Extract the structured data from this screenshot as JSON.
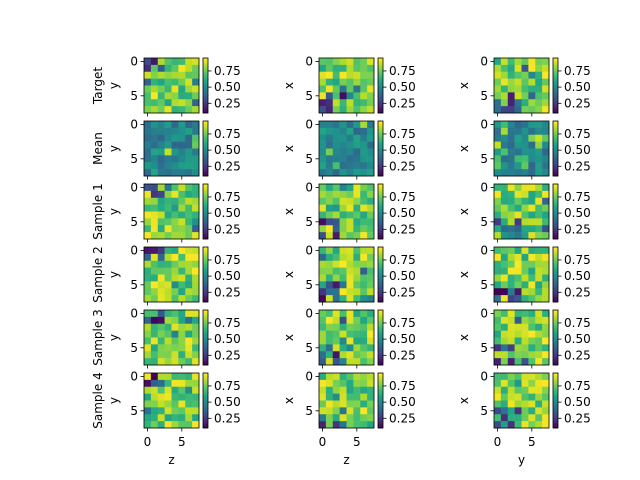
{
  "chart_data": {
    "type": "heatmap",
    "title": "",
    "rows": [
      "Target",
      "Mean",
      "Sample 1",
      "Sample 2",
      "Sample 3",
      "Sample 4"
    ],
    "column_xlabels": [
      "z",
      "z",
      "y"
    ],
    "column_ylabels": [
      "y",
      "x",
      "x"
    ],
    "axis_ticks": [
      0,
      5
    ],
    "grid_size": 8,
    "colormap": "viridis",
    "colorbar_ticks": [
      0.25,
      0.5,
      0.75
    ],
    "colorbar_tick_labels": [
      "0.25",
      "0.50",
      "0.75"
    ],
    "color_range": [
      0.1,
      0.95
    ],
    "grid": false,
    "legend": "none"
  }
}
